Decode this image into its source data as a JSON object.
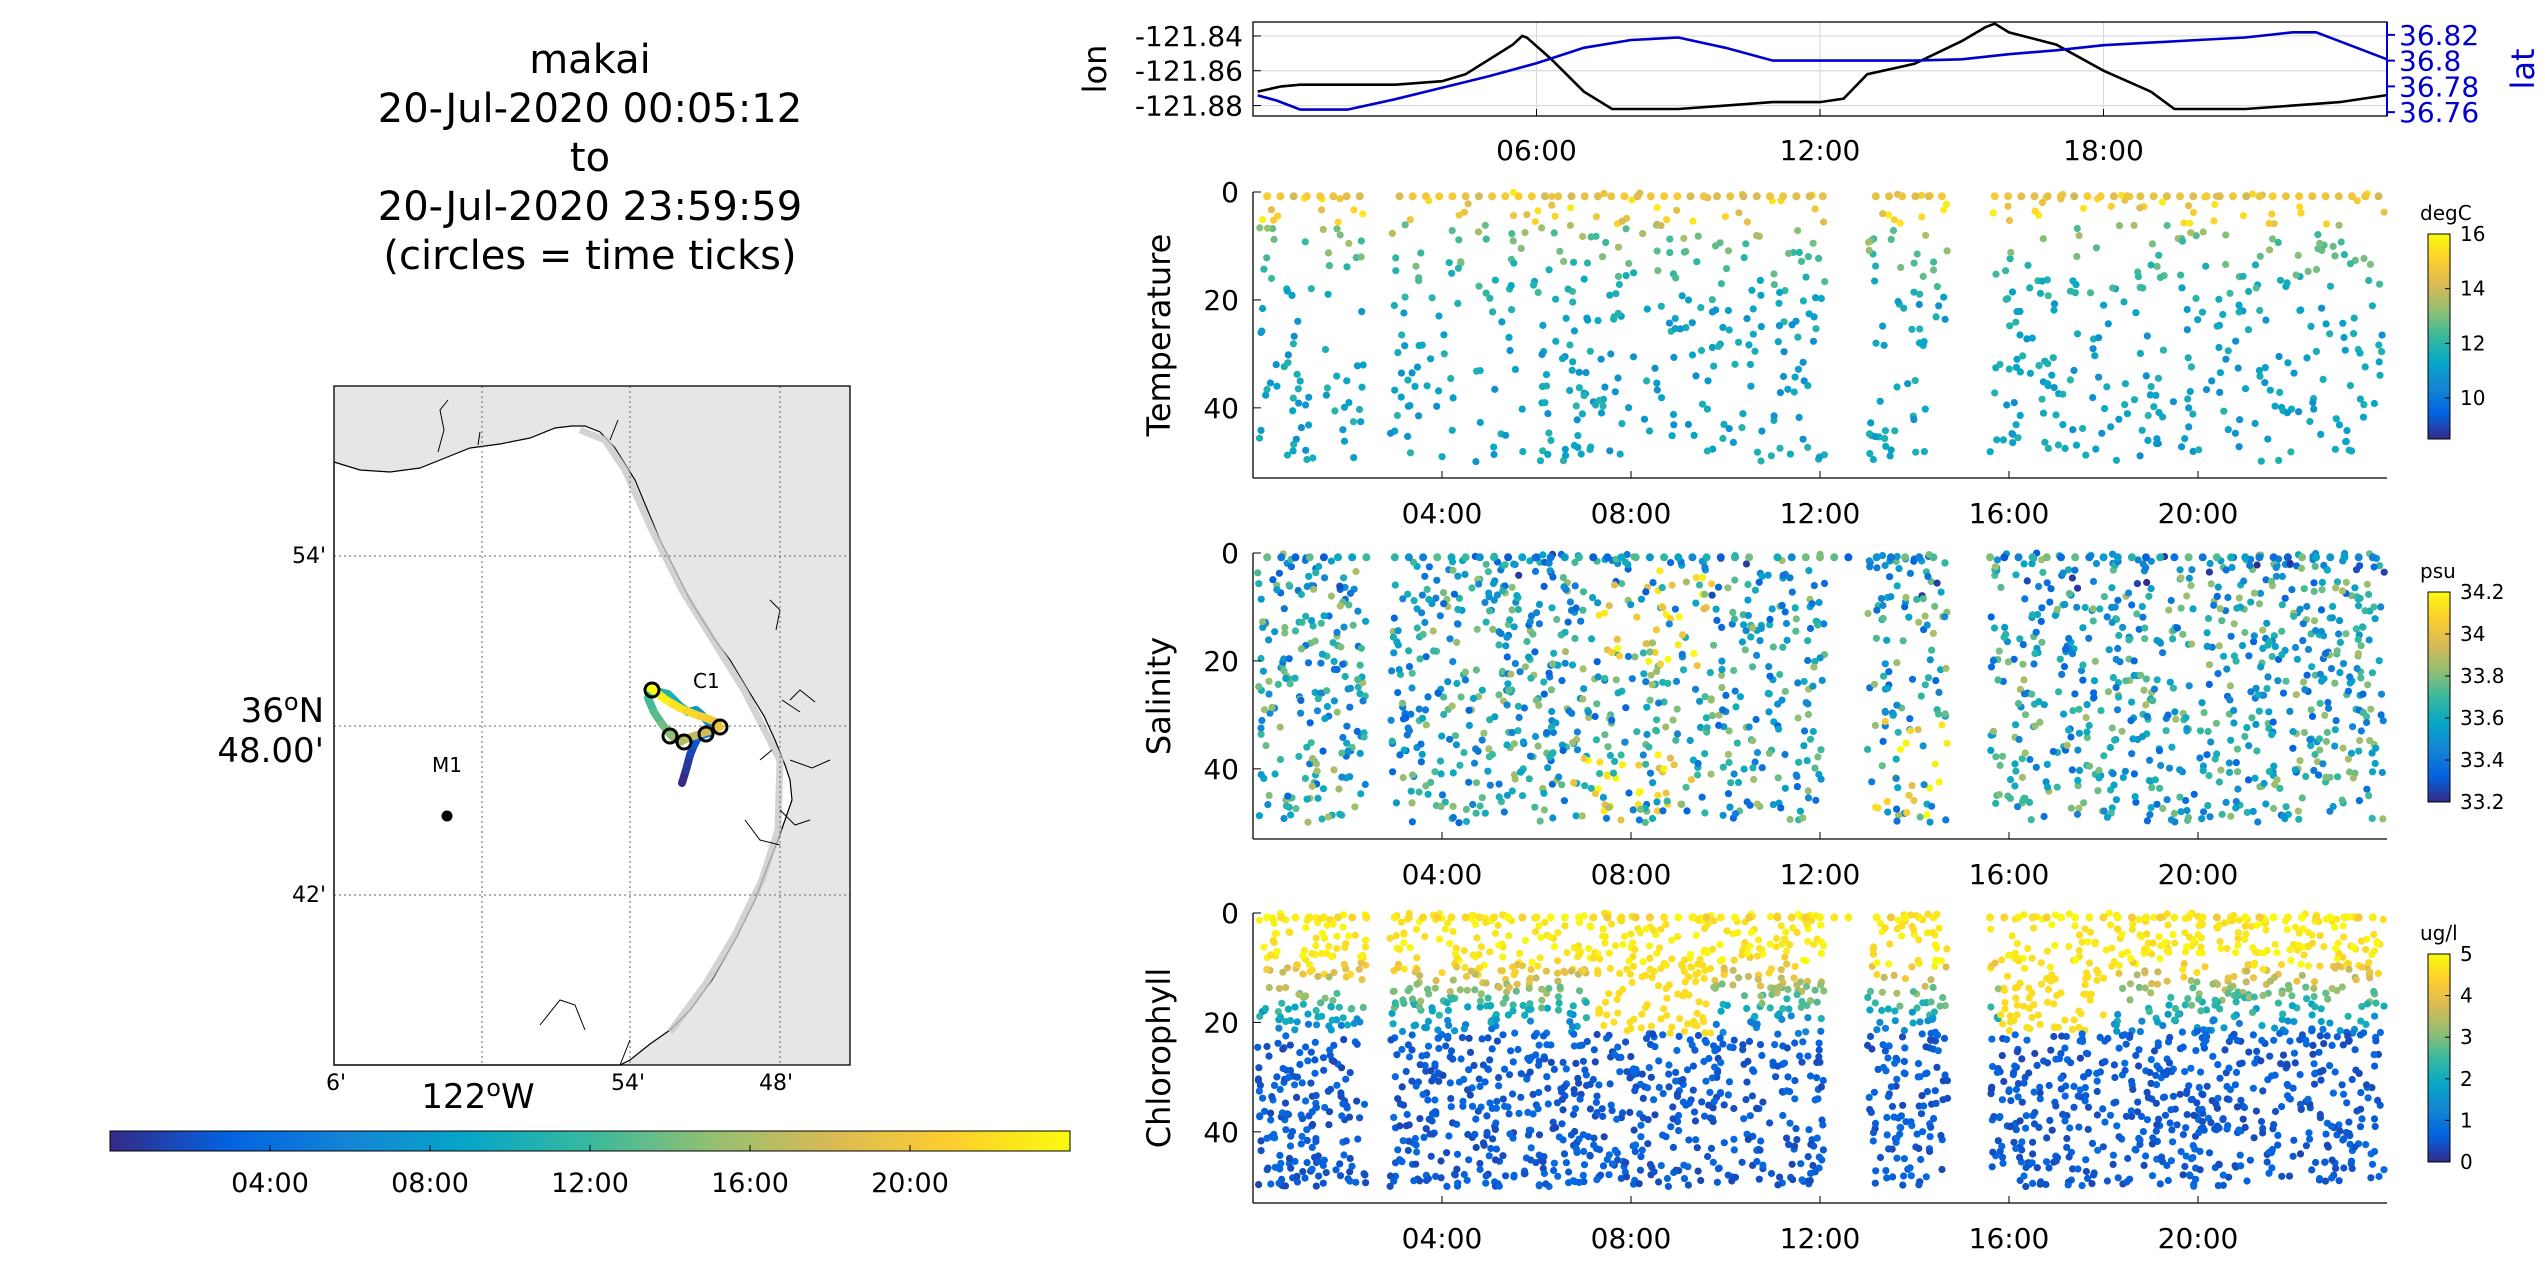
{
  "header": {
    "vehicle": "makai",
    "start": "20-Jul-2020 00:05:12",
    "to": "to",
    "end": "20-Jul-2020 23:59:59",
    "note": "(circles = time ticks)"
  },
  "colormaps": {
    "parula": [
      "#352a87",
      "#0363e1",
      "#1485d4",
      "#06a7c6",
      "#38b99e",
      "#92bf73",
      "#d9ba56",
      "#fcce2e",
      "#f9fb0e"
    ]
  },
  "chart_data": [
    {
      "type": "line",
      "panel": "position",
      "xlim": [
        0,
        24
      ],
      "x_ticks": [
        "06:00",
        "12:00",
        "18:00"
      ],
      "x_tick_hours": [
        6,
        12,
        18
      ],
      "left_axis": {
        "label": "lon",
        "ylim": [
          -121.886,
          -121.832
        ],
        "ticks": [
          -121.84,
          -121.86,
          -121.88
        ],
        "tick_labels": [
          "-121.84",
          "-121.86",
          "-121.88"
        ],
        "color": "#000000"
      },
      "right_axis": {
        "label": "lat",
        "ylim": [
          36.757,
          36.83
        ],
        "ticks": [
          36.82,
          36.8,
          36.78,
          36.76
        ],
        "tick_labels": [
          "36.82",
          "36.8",
          "36.78",
          "36.76"
        ],
        "color": "#0000cc"
      },
      "series": [
        {
          "axis": "left",
          "color": "#000000",
          "x": [
            0.1,
            0.6,
            1,
            2,
            3,
            4,
            4.5,
            5.5,
            5.7,
            5.8,
            6.3,
            7,
            7.6,
            8,
            9,
            10,
            11,
            12,
            12.5,
            13,
            14,
            15,
            15.5,
            15.7,
            16,
            17,
            18,
            19,
            19.5,
            20,
            21,
            22,
            23,
            24
          ],
          "y": [
            -121.872,
            -121.869,
            -121.868,
            -121.868,
            -121.868,
            -121.866,
            -121.862,
            -121.845,
            -121.84,
            -121.841,
            -121.853,
            -121.872,
            -121.882,
            -121.882,
            -121.882,
            -121.88,
            -121.878,
            -121.878,
            -121.876,
            -121.862,
            -121.856,
            -121.843,
            -121.835,
            -121.833,
            -121.838,
            -121.845,
            -121.86,
            -121.872,
            -121.882,
            -121.882,
            -121.882,
            -121.88,
            -121.878,
            -121.874
          ]
        },
        {
          "axis": "right",
          "color": "#0000cc",
          "x": [
            0.1,
            0.5,
            1,
            2,
            3,
            4,
            5,
            6,
            7,
            8,
            9,
            10,
            11,
            12,
            13,
            14,
            15,
            16,
            17,
            18,
            19,
            20,
            21,
            22,
            22.5,
            23,
            24
          ],
          "y": [
            36.773,
            36.769,
            36.762,
            36.762,
            36.77,
            36.779,
            36.788,
            36.798,
            36.81,
            36.816,
            36.818,
            36.81,
            36.8,
            36.8,
            36.8,
            36.8,
            36.801,
            36.805,
            36.808,
            36.812,
            36.814,
            36.816,
            36.818,
            36.822,
            36.822,
            36.815,
            36.801
          ]
        }
      ]
    },
    {
      "type": "scatter",
      "panel": "temperature",
      "ylabel": "Temperature",
      "y_reversed": true,
      "ylim": [
        0,
        53
      ],
      "y_ticks": [
        0,
        20,
        40
      ],
      "xlim": [
        0,
        24
      ],
      "x_ticks": [
        "04:00",
        "08:00",
        "12:00",
        "16:00",
        "20:00"
      ],
      "x_tick_hours": [
        4,
        8,
        12,
        16,
        20
      ],
      "gaps": [
        [
          2.4,
          2.9
        ],
        [
          10.8,
          10.9
        ],
        [
          12.1,
          13.0
        ],
        [
          14.7,
          15.6
        ]
      ],
      "colorbar": {
        "unit": "degC",
        "range": [
          8.5,
          16
        ],
        "ticks": [
          10,
          12,
          14,
          16
        ]
      },
      "points_per_hour": 38,
      "surface_value": 14.5,
      "deep_value": 11.2
    },
    {
      "type": "scatter",
      "panel": "salinity",
      "ylabel": "Salinity",
      "y_reversed": true,
      "ylim": [
        0,
        53
      ],
      "y_ticks": [
        0,
        20,
        40
      ],
      "xlim": [
        0,
        24
      ],
      "x_ticks": [
        "04:00",
        "08:00",
        "12:00",
        "16:00",
        "20:00"
      ],
      "x_tick_hours": [
        4,
        8,
        12,
        16,
        20
      ],
      "gaps": [
        [
          2.4,
          2.9
        ],
        [
          10.8,
          10.9
        ],
        [
          12.1,
          13.0
        ],
        [
          14.7,
          15.6
        ]
      ],
      "colorbar": {
        "unit": "psu",
        "range": [
          33.2,
          34.2
        ],
        "ticks": [
          33.2,
          33.4,
          33.6,
          33.8,
          34,
          34.2
        ]
      },
      "points_per_hour": 80,
      "surface_value": 33.55,
      "deep_value": 33.7
    },
    {
      "type": "scatter",
      "panel": "chlorophyll",
      "ylabel": "Chlorophyll",
      "y_reversed": true,
      "ylim": [
        0,
        53
      ],
      "y_ticks": [
        0,
        20,
        40
      ],
      "xlim": [
        0,
        24
      ],
      "x_ticks": [
        "04:00",
        "08:00",
        "12:00",
        "16:00",
        "20:00"
      ],
      "x_tick_hours": [
        4,
        8,
        12,
        16,
        20
      ],
      "gaps": [
        [
          2.4,
          2.9
        ],
        [
          10.8,
          10.9
        ],
        [
          12.1,
          13.0
        ],
        [
          14.7,
          15.6
        ]
      ],
      "colorbar": {
        "unit": "ug/l",
        "range": [
          0,
          5
        ],
        "ticks": [
          0,
          1,
          2,
          3,
          4,
          5
        ]
      },
      "points_per_hour": 120,
      "surface_value": 4.6,
      "deep_value": 0.5
    }
  ],
  "map": {
    "lat_labels": [
      "54'",
      "36",
      "48.00'",
      "42'"
    ],
    "lat_deg_symbol": "o",
    "lat_hemisphere": "N",
    "lon_labels": [
      "6'",
      "122",
      "54'",
      "48'"
    ],
    "lon_deg_symbol": "o",
    "lon_hemisphere": "W",
    "markers": [
      {
        "label": "C1"
      },
      {
        "label": "M1"
      }
    ],
    "land_color": "#e6e6e6"
  },
  "time_colorbar": {
    "ticks": [
      "04:00",
      "08:00",
      "12:00",
      "16:00",
      "20:00"
    ],
    "tick_hours": [
      4,
      8,
      12,
      16,
      20
    ],
    "range_hours": [
      0,
      24
    ]
  }
}
